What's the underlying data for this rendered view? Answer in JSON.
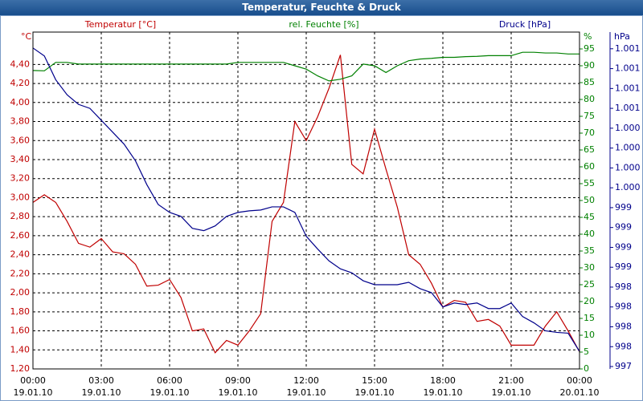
{
  "chart_data": {
    "type": "line",
    "title": "Temperatur, Feuchte & Druck",
    "x": [
      0,
      0.5,
      1,
      1.5,
      2,
      2.5,
      3,
      3.5,
      4,
      4.5,
      5,
      5.5,
      6,
      6.5,
      7,
      7.5,
      8,
      8.5,
      9,
      9.5,
      10,
      10.5,
      11,
      11.5,
      12,
      12.5,
      13,
      13.5,
      14,
      14.5,
      15,
      15.5,
      16,
      16.5,
      17,
      17.5,
      18,
      18.5,
      19,
      19.5,
      20,
      20.5,
      21,
      21.5,
      22,
      22.5,
      23,
      23.5,
      24
    ],
    "xlim": [
      0,
      24
    ],
    "xticks": [
      {
        "value": 0,
        "label": "00:00\n19.01.10"
      },
      {
        "value": 3,
        "label": "03:00\n19.01.10"
      },
      {
        "value": 6,
        "label": "06:00\n19.01.10"
      },
      {
        "value": 9,
        "label": "09:00\n19.01.10"
      },
      {
        "value": 12,
        "label": "12:00\n19.01.10"
      },
      {
        "value": 15,
        "label": "15:00\n19.01.10"
      },
      {
        "value": 18,
        "label": "18:00\n19.01.10"
      },
      {
        "value": 21,
        "label": "21:00\n19.01.10"
      },
      {
        "value": 24,
        "label": "00:00\n20.01.10"
      }
    ],
    "ylabel": "°C",
    "ylim": [
      1.2,
      4.74
    ],
    "yticks": [
      {
        "value": 1.2,
        "label": "1,20"
      },
      {
        "value": 1.4,
        "label": "1,40"
      },
      {
        "value": 1.6,
        "label": "1,60"
      },
      {
        "value": 1.8,
        "label": "1,80"
      },
      {
        "value": 2.0,
        "label": "2,00"
      },
      {
        "value": 2.2,
        "label": "2,20"
      },
      {
        "value": 2.4,
        "label": "2,40"
      },
      {
        "value": 2.6,
        "label": "2,60"
      },
      {
        "value": 2.8,
        "label": "2,80"
      },
      {
        "value": 3.0,
        "label": "3,00"
      },
      {
        "value": 3.2,
        "label": "3,20"
      },
      {
        "value": 3.4,
        "label": "3,40"
      },
      {
        "value": 3.6,
        "label": "3,60"
      },
      {
        "value": 3.8,
        "label": "3,80"
      },
      {
        "value": 4.0,
        "label": "4,00"
      },
      {
        "value": 4.2,
        "label": "4,20"
      },
      {
        "value": 4.4,
        "label": "4,40"
      }
    ],
    "y2label": "%",
    "y2lim": [
      0,
      100
    ],
    "y2ticks": [
      0,
      5,
      10,
      15,
      20,
      25,
      30,
      35,
      40,
      45,
      50,
      55,
      60,
      65,
      70,
      75,
      80,
      85,
      90,
      95
    ],
    "y3label": "hPa",
    "y3lim": [
      997.37,
      1001.61
    ],
    "y3ticks": [
      {
        "value": 997.4,
        "label": "997"
      },
      {
        "value": 997.65,
        "label": "998"
      },
      {
        "value": 997.9,
        "label": "998"
      },
      {
        "value": 998.15,
        "label": "998"
      },
      {
        "value": 998.4,
        "label": "998"
      },
      {
        "value": 998.65,
        "label": "999"
      },
      {
        "value": 998.9,
        "label": "999"
      },
      {
        "value": 999.15,
        "label": "999"
      },
      {
        "value": 999.4,
        "label": "999"
      },
      {
        "value": 999.65,
        "label": "1.000"
      },
      {
        "value": 999.9,
        "label": "1.000"
      },
      {
        "value": 1000.15,
        "label": "1.000"
      },
      {
        "value": 1000.4,
        "label": "1.000"
      },
      {
        "value": 1000.65,
        "label": "1.001"
      },
      {
        "value": 1000.9,
        "label": "1.001"
      },
      {
        "value": 1001.15,
        "label": "1.001"
      },
      {
        "value": 1001.4,
        "label": "1.001"
      }
    ],
    "grid": true,
    "series": [
      {
        "name": "Temperatur [°C]",
        "color": "#c00000",
        "axis": "y",
        "values": [
          2.95,
          3.03,
          2.95,
          2.75,
          2.52,
          2.48,
          2.57,
          2.43,
          2.41,
          2.3,
          2.07,
          2.08,
          2.14,
          1.95,
          1.6,
          1.62,
          1.37,
          1.5,
          1.45,
          1.6,
          1.78,
          2.75,
          2.95,
          3.8,
          3.6,
          3.85,
          4.15,
          4.5,
          3.35,
          3.25,
          3.72,
          3.3,
          2.9,
          2.4,
          2.3,
          2.1,
          1.85,
          1.92,
          1.9,
          1.7,
          1.72,
          1.65,
          1.45,
          1.45,
          1.45,
          1.65,
          1.8,
          1.6,
          1.38
        ]
      },
      {
        "name": "rel. Feuchte [%]",
        "color": "#008000",
        "axis": "y2",
        "values": [
          88.6,
          88.5,
          91,
          91,
          90.5,
          90.5,
          90.5,
          90.5,
          90.5,
          90.5,
          90.5,
          90.5,
          90.5,
          90.5,
          90.5,
          90.5,
          90.5,
          90.5,
          91,
          91,
          91,
          91,
          91,
          90,
          89,
          87,
          85.5,
          86,
          87,
          90.5,
          90,
          88,
          90,
          91.5,
          92,
          92.2,
          92.5,
          92.5,
          92.7,
          92.8,
          93,
          93,
          93,
          94,
          94,
          93.8,
          93.8,
          93.5,
          93.5
        ]
      },
      {
        "name": "Druck [hPa]",
        "color": "#00008b",
        "axis": "y3",
        "values": [
          1001.41,
          1001.31,
          1001.01,
          1000.82,
          1000.7,
          1000.65,
          1000.5,
          1000.35,
          1000.2,
          999.99,
          999.69,
          999.44,
          999.34,
          999.29,
          999.14,
          999.11,
          999.17,
          999.29,
          999.34,
          999.36,
          999.37,
          999.41,
          999.41,
          999.34,
          999.04,
          998.88,
          998.73,
          998.63,
          998.58,
          998.48,
          998.43,
          998.43,
          998.43,
          998.46,
          998.38,
          998.33,
          998.15,
          998.2,
          998.18,
          998.2,
          998.13,
          998.13,
          998.2,
          998.03,
          997.95,
          997.85,
          997.83,
          997.82,
          997.59
        ]
      }
    ]
  }
}
